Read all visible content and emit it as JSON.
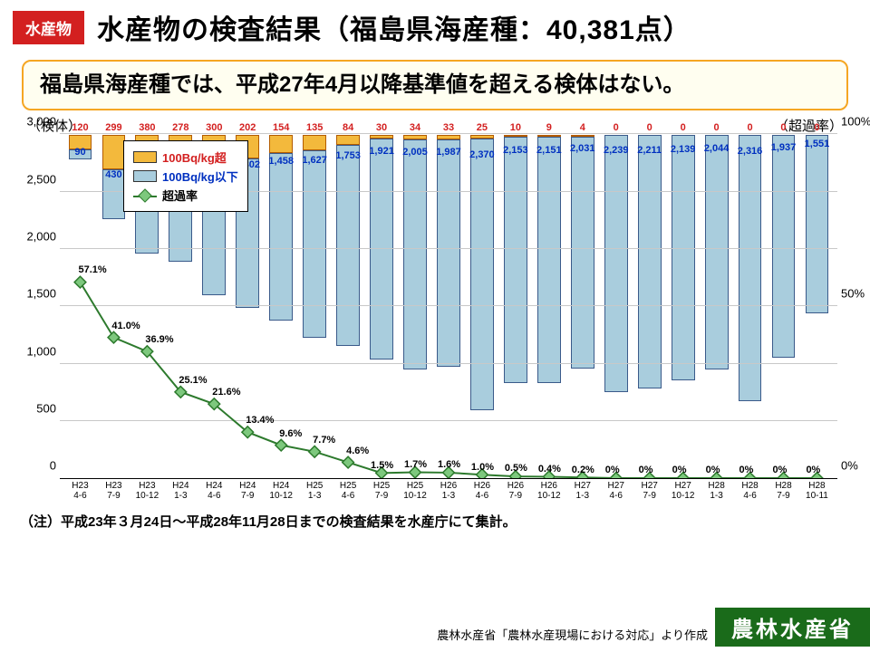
{
  "header": {
    "category_badge": "水産物",
    "title": "水産物の検査結果（福島県海産種：40,381点）"
  },
  "summary": "福島県海産種では、平成27年4月以降基準値を超える検体はない。",
  "axis": {
    "left_title": "（検体）",
    "right_title": "（超過率）",
    "left_max": 3000,
    "left_step": 500,
    "right_max": 100,
    "right_step": 50,
    "right_suffix": "%"
  },
  "legend": {
    "above": "100Bq/kg超",
    "below": "100Bq/kg以下",
    "rate": "超過率"
  },
  "colors": {
    "bar_below": "#a9cddd",
    "bar_below_border": "#3a5a8a",
    "bar_above": "#f3b93c",
    "bar_above_border": "#b35c00",
    "line": "#2d7a2d",
    "marker_fill": "#7dc87d",
    "grid": "#c8c8c8",
    "red_text": "#d32020",
    "blue_text": "#0030c0",
    "badge_red": "#d32020",
    "ministry_green": "#1a6b1a"
  },
  "chart": {
    "type": "stacked-bar-with-line",
    "categories": [
      {
        "l1": "H23",
        "l2": "4-6"
      },
      {
        "l1": "H23",
        "l2": "7-9"
      },
      {
        "l1": "H23",
        "l2": "10-12"
      },
      {
        "l1": "H24",
        "l2": "1-3"
      },
      {
        "l1": "H24",
        "l2": "4-6"
      },
      {
        "l1": "H24",
        "l2": "7-9"
      },
      {
        "l1": "H24",
        "l2": "10-12"
      },
      {
        "l1": "H25",
        "l2": "1-3"
      },
      {
        "l1": "H25",
        "l2": "4-6"
      },
      {
        "l1": "H25",
        "l2": "7-9"
      },
      {
        "l1": "H25",
        "l2": "10-12"
      },
      {
        "l1": "H26",
        "l2": "1-3"
      },
      {
        "l1": "H26",
        "l2": "4-6"
      },
      {
        "l1": "H26",
        "l2": "7-9"
      },
      {
        "l1": "H26",
        "l2": "10-12"
      },
      {
        "l1": "H27",
        "l2": "1-3"
      },
      {
        "l1": "H27",
        "l2": "4-6"
      },
      {
        "l1": "H27",
        "l2": "7-9"
      },
      {
        "l1": "H27",
        "l2": "10-12"
      },
      {
        "l1": "H28",
        "l2": "1-3"
      },
      {
        "l1": "H28",
        "l2": "4-6"
      },
      {
        "l1": "H28",
        "l2": "7-9"
      },
      {
        "l1": "H28",
        "l2": "10-11"
      }
    ],
    "below": [
      90,
      430,
      649,
      828,
      1092,
      1302,
      1458,
      1627,
      1753,
      1921,
      2005,
      1987,
      2370,
      2153,
      2151,
      2031,
      2239,
      2211,
      2139,
      2044,
      2316,
      1937,
      1551
    ],
    "above": [
      120,
      299,
      380,
      278,
      300,
      202,
      154,
      135,
      84,
      30,
      34,
      33,
      25,
      10,
      9,
      4,
      0,
      0,
      0,
      0,
      0,
      0,
      0
    ],
    "rate_pct": [
      57.1,
      41.0,
      36.9,
      25.1,
      21.6,
      13.4,
      9.6,
      7.7,
      4.6,
      1.5,
      1.7,
      1.6,
      1.0,
      0.5,
      0.4,
      0.2,
      0,
      0,
      0,
      0,
      0,
      0,
      0
    ],
    "rate_labels": [
      "57.1%",
      "41.0%",
      "36.9%",
      "25.1%",
      "21.6%",
      "13.4%",
      "9.6%",
      "7.7%",
      "4.6%",
      "1.5%",
      "1.7%",
      "1.6%",
      "1.0%",
      "0.5%",
      "0.4%",
      "0.2%",
      "0%",
      "0%",
      "0%",
      "0%",
      "0%",
      "0%",
      "0%"
    ]
  },
  "footnote": "（注）平成23年３月24日～平成28年11月28日までの検査結果を水産庁にて集計。",
  "source": "農林水産省「農林水産現場における対応」より作成",
  "ministry": "農林水産省"
}
